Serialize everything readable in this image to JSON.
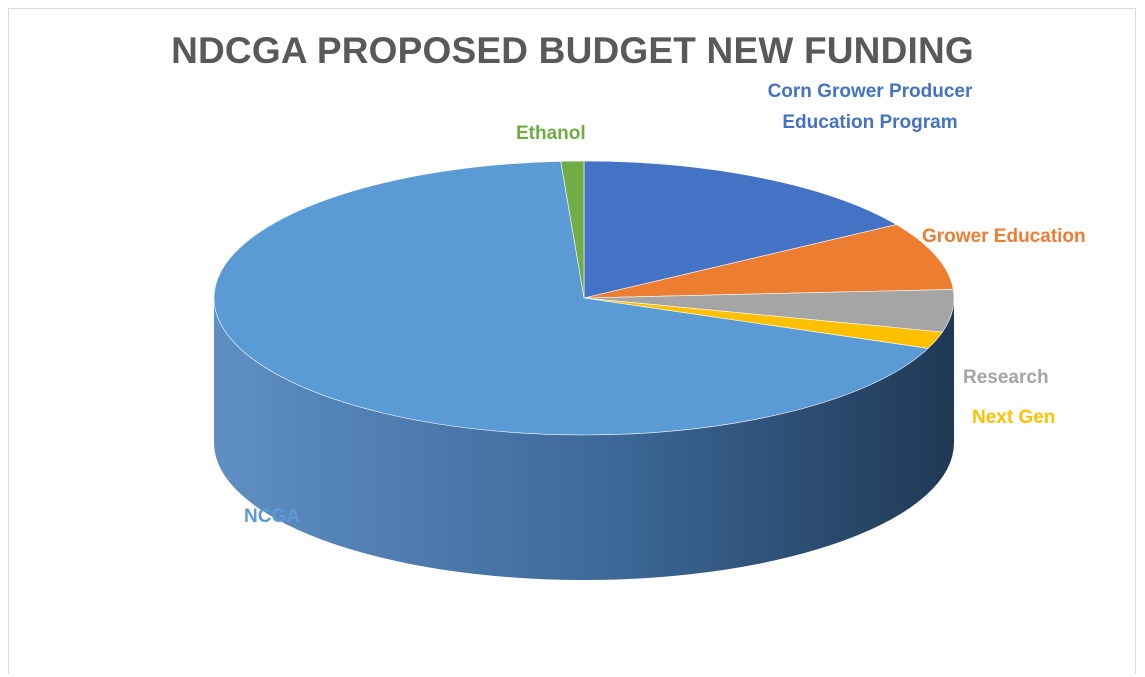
{
  "chart_data": {
    "type": "pie",
    "title": "NDCGA PROPOSED BUDGET NEW FUNDING",
    "categories": [
      "Corn Grower Producer Education Program",
      "Grower Education",
      "Research",
      "Next Gen",
      "NCGA",
      "Ethanol"
    ],
    "values": [
      16,
      8,
      5,
      2,
      68,
      1
    ],
    "colors": [
      "#4472c4",
      "#ed7d31",
      "#a5a5a5",
      "#ffc000",
      "#5b9bd5",
      "#70ad47"
    ],
    "legend": "none",
    "data_labels": "category names"
  },
  "labels": {
    "corn": "Corn Grower Producer Education Program",
    "ethanol": "Ethanol",
    "grower": "Grower Education",
    "research": "Research",
    "nextgen": "Next Gen",
    "ncga": "NCGA"
  }
}
